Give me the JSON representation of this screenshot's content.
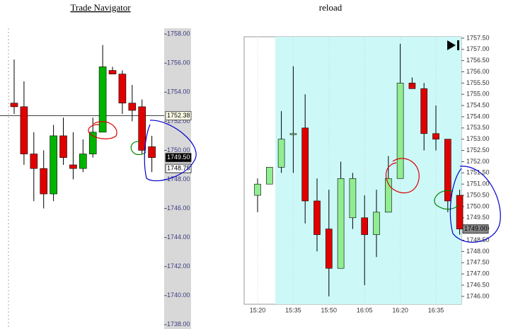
{
  "chart_data": [
    {
      "type": "candlestick",
      "title": "Trade Navigator",
      "categories": [
        null,
        null,
        null,
        null,
        null,
        null,
        null,
        null,
        null,
        null,
        null,
        null,
        null,
        null,
        null
      ],
      "open": [
        1753.25,
        1753.0,
        1749.75,
        1748.75,
        1747.0,
        1751.0,
        1749.0,
        1748.75,
        1749.75,
        1751.25,
        1755.5,
        1755.25,
        1753.25,
        1753.0,
        1750.25
      ],
      "close": [
        1753.0,
        1749.75,
        1748.75,
        1747.0,
        1751.0,
        1749.5,
        1748.75,
        1749.75,
        1751.25,
        1755.75,
        1755.25,
        1753.25,
        1752.75,
        1750.0,
        1749.5
      ],
      "high": [
        1756.25,
        1754.75,
        1751.25,
        1750.0,
        1751.75,
        1752.25,
        1751.25,
        1750.75,
        1752.25,
        1757.25,
        1755.75,
        1755.5,
        1754.5,
        1753.5,
        1751.0
      ],
      "low": [
        1752.5,
        1749.0,
        1746.5,
        1746.0,
        1746.5,
        1749.0,
        1748.0,
        1748.5,
        1749.5,
        1751.25,
        1755.25,
        1752.5,
        1752.0,
        1749.75,
        1748.5
      ],
      "up_color": "#00b400",
      "down_color": "#e00000",
      "ylim": [
        1737.7,
        1758.4
      ],
      "yticks": [
        {
          "value": 1738,
          "label": "1738.00"
        },
        {
          "value": 1740,
          "label": "1740.00"
        },
        {
          "value": 1742,
          "label": "1742.00"
        },
        {
          "value": 1744,
          "label": "1744.00"
        },
        {
          "value": 1746,
          "label": "1746.00"
        },
        {
          "value": 1748,
          "label": "1748.00"
        },
        {
          "value": 1750,
          "label": "1750.00"
        },
        {
          "value": 1752,
          "label": "1752.00"
        },
        {
          "value": 1754,
          "label": "1754.00"
        },
        {
          "value": 1756,
          "label": "1756.00"
        },
        {
          "value": 1758,
          "label": "1758.00"
        }
      ],
      "hline": {
        "value": 1752.38,
        "label": "1752.38"
      },
      "price_labels": [
        {
          "value": 1749.5,
          "label": "1749.50"
        },
        {
          "value": 1748.75,
          "label": "1748.75"
        }
      ]
    },
    {
      "type": "candlestick",
      "title": "reload",
      "categories": [
        "15:20",
        null,
        null,
        "15:35",
        null,
        null,
        "15:50",
        null,
        null,
        "16:05",
        null,
        null,
        "16:20",
        null,
        null,
        "16:35",
        null,
        null
      ],
      "open": [
        1750.5,
        1751.0,
        1751.75,
        1753.25,
        1753.5,
        1750.25,
        1749.0,
        1747.25,
        1749.5,
        1749.5,
        1748.75,
        1749.75,
        1751.25,
        1755.5,
        1755.25,
        1753.25,
        1753.0,
        1750.5
      ],
      "close": [
        1751.0,
        1751.75,
        1753.0,
        1753.25,
        1750.25,
        1748.75,
        1747.25,
        1751.25,
        1751.25,
        1748.75,
        1749.75,
        1751.25,
        1755.5,
        1755.25,
        1753.25,
        1753.0,
        1750.25,
        1749.0
      ],
      "high": [
        1751.25,
        1751.75,
        1754.25,
        1756.25,
        1755.0,
        1751.25,
        1750.75,
        1752.0,
        1751.5,
        1750.5,
        1750.75,
        1752.25,
        1757.25,
        1755.75,
        1755.5,
        1754.5,
        1753.0,
        1750.75
      ],
      "low": [
        1749.75,
        1751.0,
        1751.5,
        1751.5,
        1749.25,
        1748.0,
        1746.0,
        1747.25,
        1749.0,
        1746.5,
        1747.75,
        1749.75,
        1751.25,
        1755.25,
        1752.5,
        1752.5,
        1749.75,
        1748.75
      ],
      "up_color": "#90ee90",
      "down_color": "#e00000",
      "ylim": [
        1745.65,
        1757.56
      ],
      "yticks": [
        {
          "value": 1746,
          "label": "1746.00"
        },
        {
          "value": 1746.5,
          "label": "1746.50"
        },
        {
          "value": 1747,
          "label": "1747.00"
        },
        {
          "value": 1747.5,
          "label": "1747.50"
        },
        {
          "value": 1748,
          "label": "1748.00"
        },
        {
          "value": 1748.5,
          "label": "1748.50"
        },
        {
          "value": 1749,
          "label": "1749.00"
        },
        {
          "value": 1749.5,
          "label": "1749.50"
        },
        {
          "value": 1750,
          "label": "1750.00"
        },
        {
          "value": 1750.5,
          "label": "1750.50"
        },
        {
          "value": 1751,
          "label": "1751.00"
        },
        {
          "value": 1751.5,
          "label": "1751.50"
        },
        {
          "value": 1752,
          "label": "1752.00"
        },
        {
          "value": 1752.5,
          "label": "1752.50"
        },
        {
          "value": 1753,
          "label": "1753.00"
        },
        {
          "value": 1753.5,
          "label": "1753.50"
        },
        {
          "value": 1754,
          "label": "1754.00"
        },
        {
          "value": 1754.5,
          "label": "1754.50"
        },
        {
          "value": 1755,
          "label": "1755.00"
        },
        {
          "value": 1755.5,
          "label": "1755.50"
        },
        {
          "value": 1756,
          "label": "1756.00"
        },
        {
          "value": 1756.5,
          "label": "1756.50"
        },
        {
          "value": 1757,
          "label": "1757.00"
        },
        {
          "value": 1757.5,
          "label": "1757.50"
        }
      ],
      "price_labels": [
        {
          "value": 1749,
          "label": "1749.00"
        }
      ]
    }
  ]
}
